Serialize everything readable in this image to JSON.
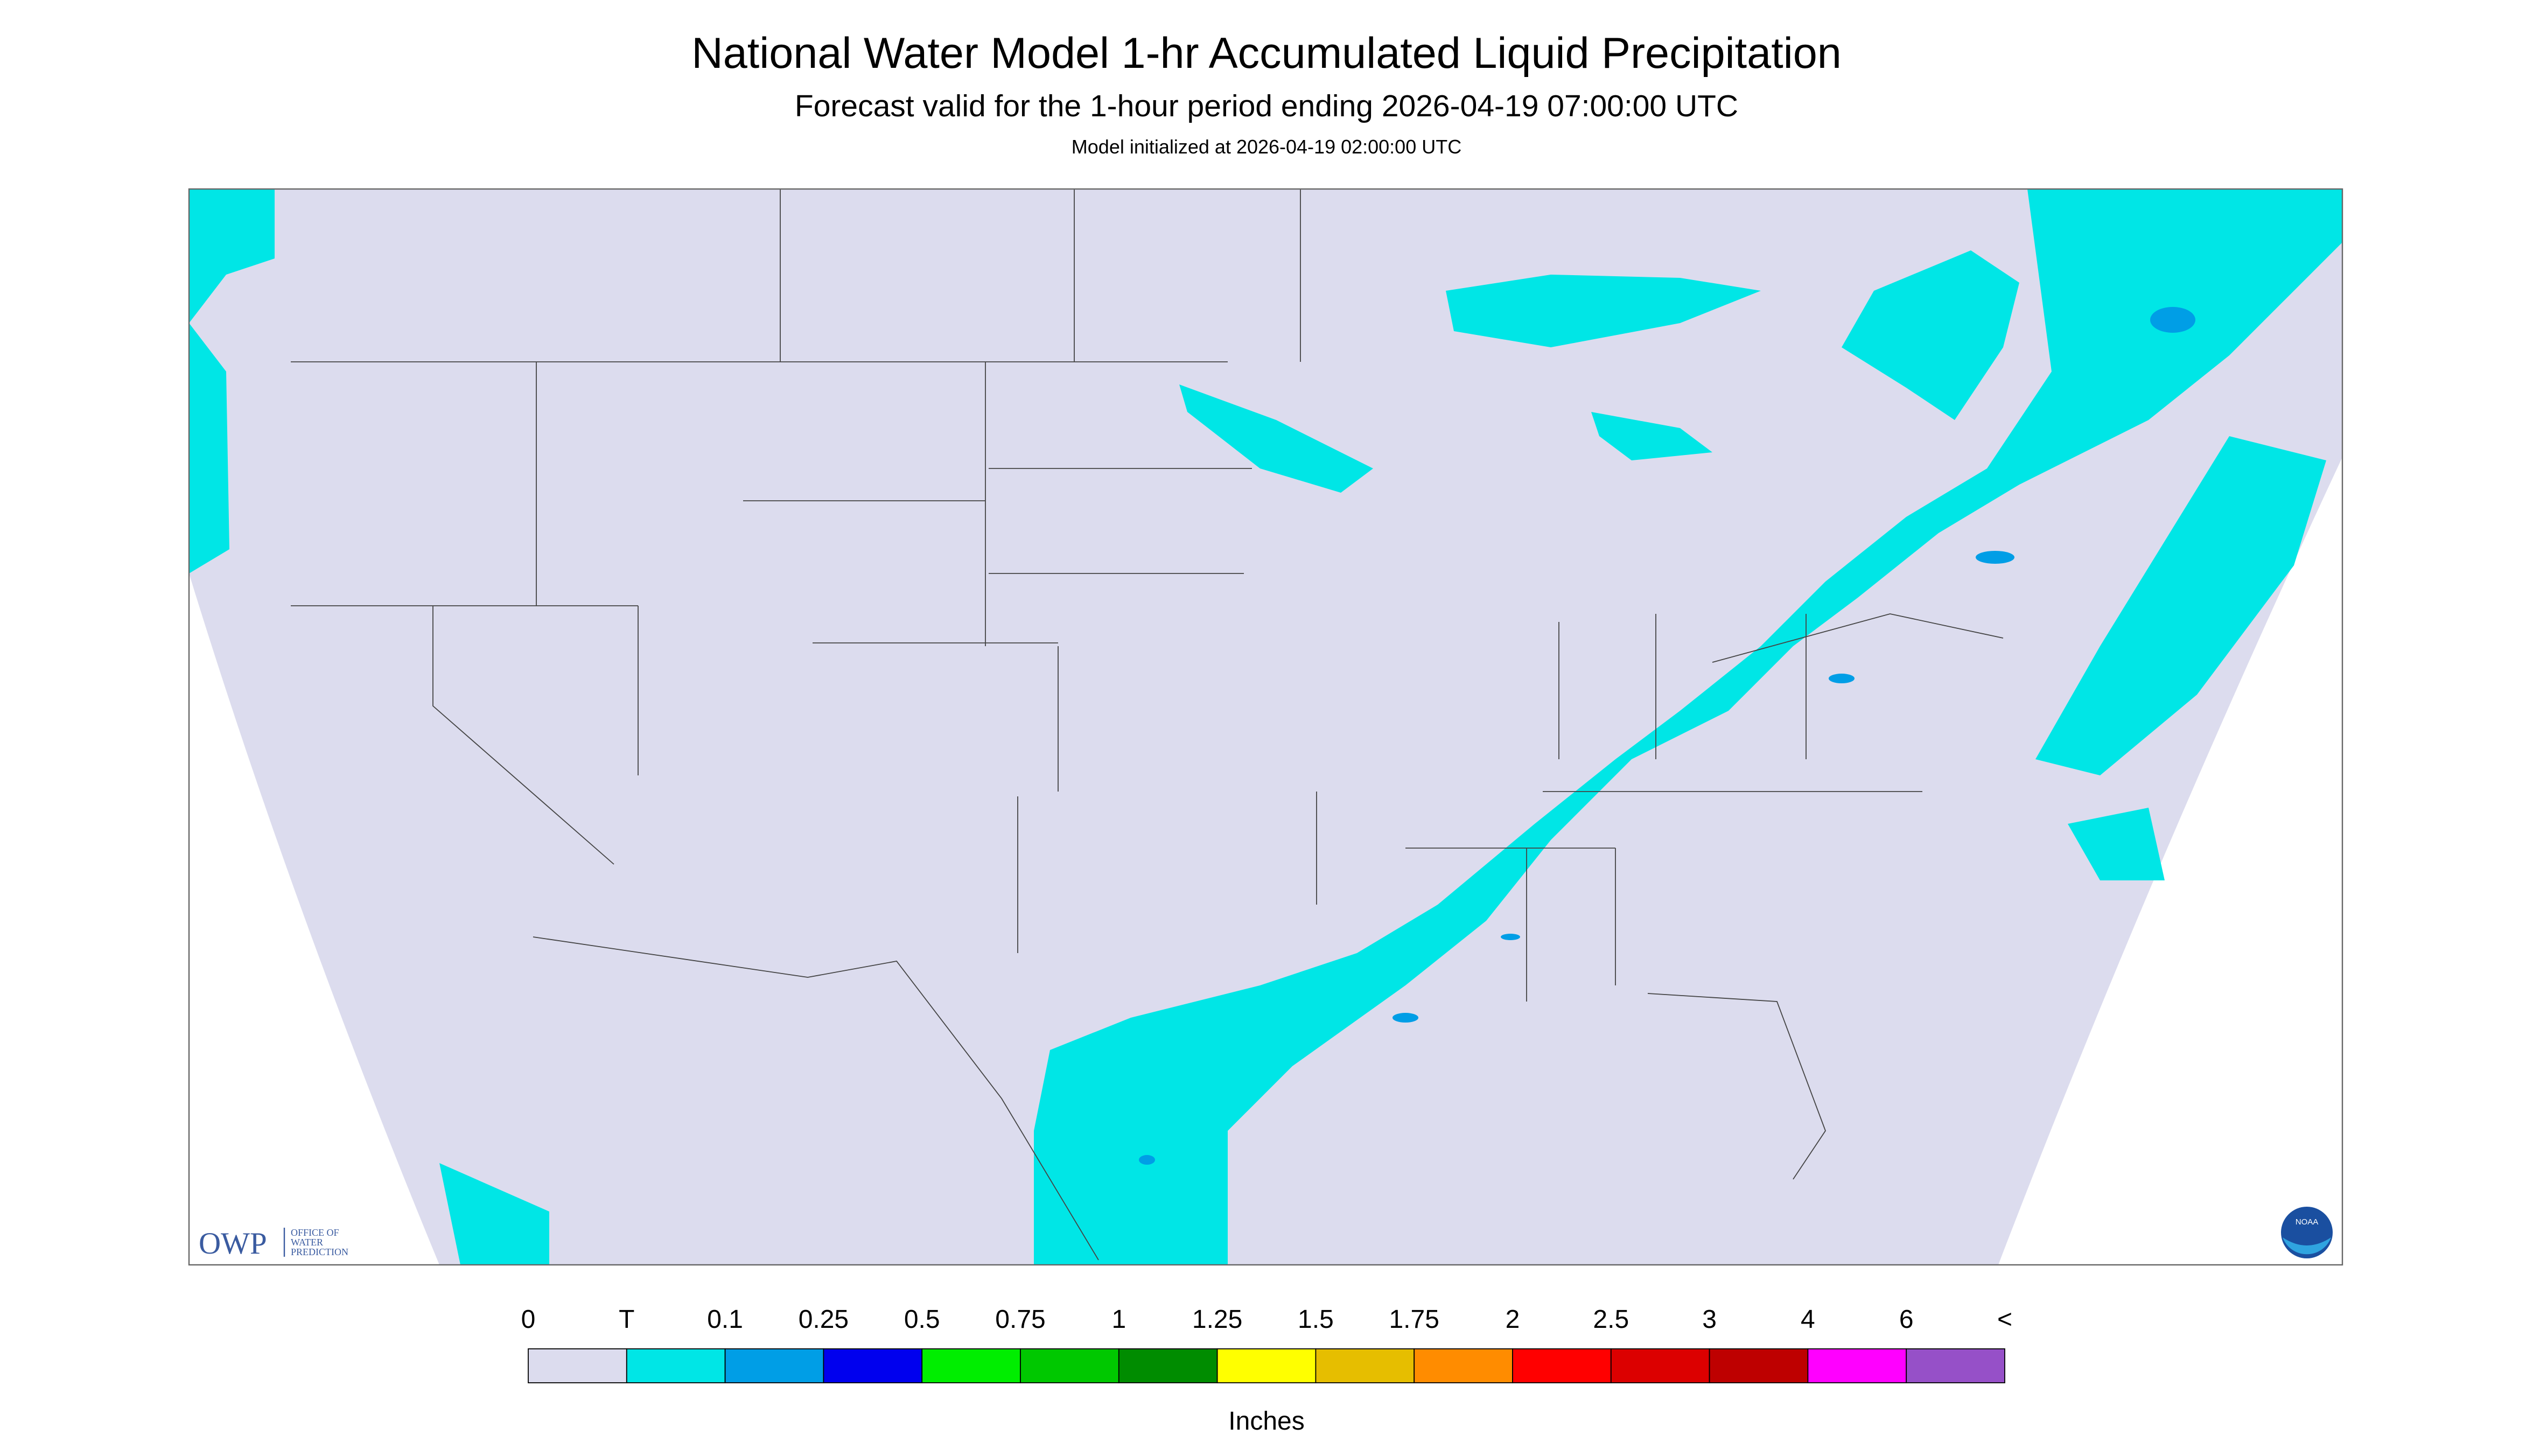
{
  "title": "National Water Model 1-hr Accumulated Liquid Precipitation",
  "subtitle": "Forecast valid for the 1-hour period ending 2026-04-19 07:00:00 UTC",
  "init_note": "Model initialized at 2026-04-19 02:00:00 UTC",
  "logo": {
    "acronym": "OWP",
    "lines": [
      "OFFICE OF",
      "WATER",
      "PREDICTION"
    ],
    "agency": "NOAA"
  },
  "legend": {
    "labels": [
      "0",
      "T",
      "0.1",
      "0.25",
      "0.5",
      "0.75",
      "1",
      "1.25",
      "1.5",
      "1.75",
      "2",
      "2.5",
      "3",
      "4",
      "6",
      "<"
    ],
    "colors": [
      "#dcdcee",
      "#00e6e6",
      "#009ee6",
      "#0000ee",
      "#00ee00",
      "#00c800",
      "#008c00",
      "#ffff00",
      "#e6be00",
      "#ff8c00",
      "#ff0000",
      "#dc0000",
      "#be0000",
      "#ff00ff",
      "#9650c8"
    ],
    "unit": "Inches"
  }
}
